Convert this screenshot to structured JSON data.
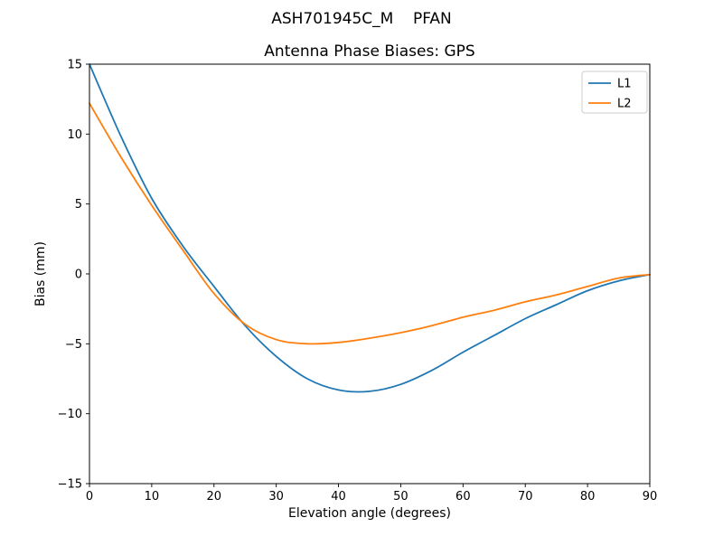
{
  "chart_data": {
    "type": "line",
    "suptitle": "ASH701945C_M    PFAN",
    "title": "Antenna Phase Biases: GPS",
    "xlabel": "Elevation angle (degrees)",
    "ylabel": "Bias (mm)",
    "xlim": [
      0,
      90
    ],
    "ylim": [
      -15,
      15
    ],
    "xticks": [
      0,
      10,
      20,
      30,
      40,
      50,
      60,
      70,
      80,
      90
    ],
    "yticks": [
      -15,
      -10,
      -5,
      0,
      5,
      10,
      15
    ],
    "grid": false,
    "legend": {
      "position": "upper right",
      "entries": [
        "L1",
        "L2"
      ]
    },
    "x": [
      0,
      5,
      10,
      15,
      20,
      25,
      30,
      35,
      40,
      45,
      50,
      55,
      60,
      65,
      70,
      75,
      80,
      85,
      90
    ],
    "series": [
      {
        "name": "L1",
        "color": "#1f77b4",
        "values": [
          15.0,
          9.9,
          5.4,
          2.0,
          -0.9,
          -3.7,
          -5.9,
          -7.5,
          -8.3,
          -8.4,
          -7.9,
          -6.9,
          -5.6,
          -4.4,
          -3.2,
          -2.2,
          -1.2,
          -0.5,
          -0.05
        ]
      },
      {
        "name": "L2",
        "color": "#ff7f0e",
        "values": [
          12.2,
          8.4,
          4.9,
          1.7,
          -1.4,
          -3.6,
          -4.7,
          -5.0,
          -4.9,
          -4.6,
          -4.2,
          -3.7,
          -3.1,
          -2.6,
          -2.0,
          -1.5,
          -0.9,
          -0.3,
          -0.05
        ]
      }
    ]
  }
}
